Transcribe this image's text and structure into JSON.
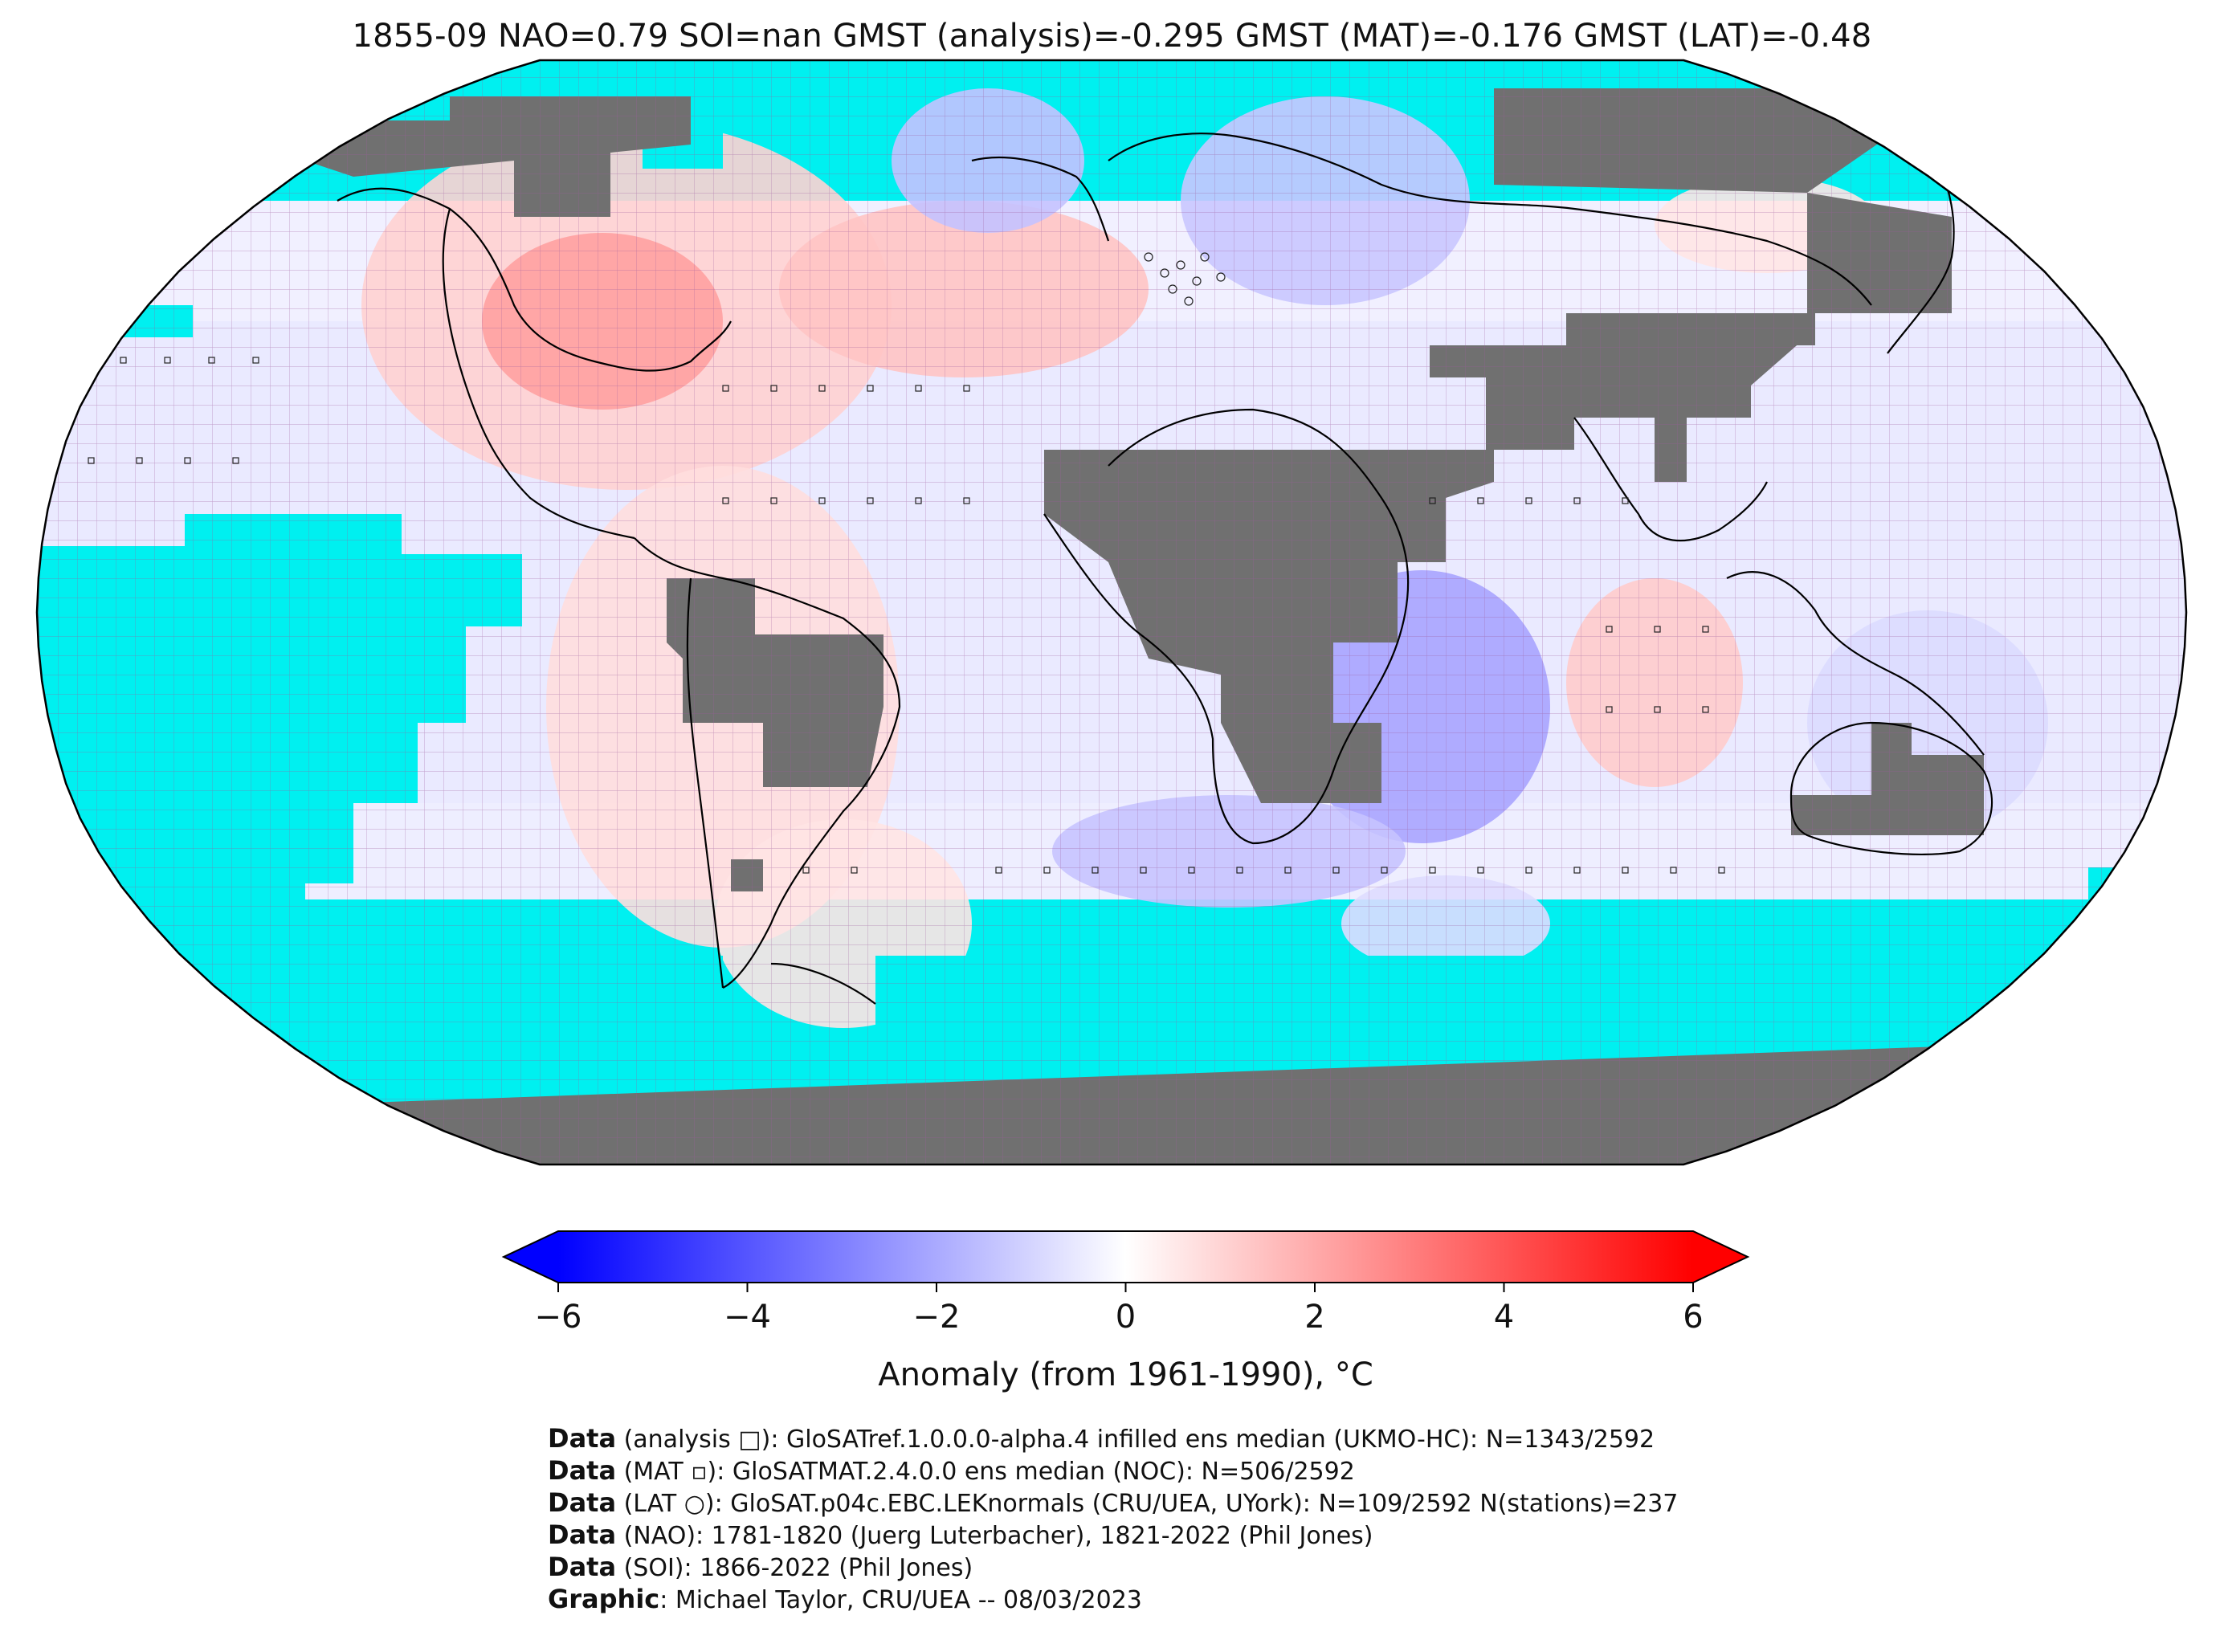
{
  "title": "1855-09 NAO=0.79 SOI=nan GMST (analysis)=-0.295 GMST (MAT)=-0.176 GMST (LAT)=-0.48",
  "map": {
    "projection": "Robinson",
    "graticule_step_deg": 5,
    "colors": {
      "ocean_no_data": "#00f0f0",
      "land_no_data": "#707070",
      "grid": "#9c5a9c",
      "coast": "#000000"
    }
  },
  "colorbar": {
    "label": "Anomaly (from 1961-1990), °C",
    "min": -6,
    "max": 6,
    "extend": "both",
    "ticks": [
      {
        "value": -6,
        "label": "−6"
      },
      {
        "value": -4,
        "label": "−4"
      },
      {
        "value": -2,
        "label": "−2"
      },
      {
        "value": 0,
        "label": "0"
      },
      {
        "value": 2,
        "label": "2"
      },
      {
        "value": 4,
        "label": "4"
      },
      {
        "value": 6,
        "label": "6"
      }
    ],
    "colormap": [
      "#0000ff",
      "#ffffff",
      "#ff0000"
    ]
  },
  "credits": [
    {
      "bold": "Data",
      "text": " (analysis □): GloSATref.1.0.0.0-alpha.4 infilled ens median (UKMO-HC): N=1343/2592"
    },
    {
      "bold": "Data",
      "text": " (MAT ▫): GloSATMAT.2.4.0.0 ens median (NOC): N=506/2592"
    },
    {
      "bold": "Data",
      "text": " (LAT ○): GloSAT.p04c.EBC.LEKnormals (CRU/UEA, UYork): N=109/2592 N(stations)=237"
    },
    {
      "bold": "Data",
      "text": " (NAO): 1781-1820 (Juerg Luterbacher), 1821-2022 (Phil Jones)"
    },
    {
      "bold": "Data",
      "text": " (SOI): 1866-2022 (Phil Jones)"
    },
    {
      "bold": "Graphic",
      "text": ": Michael Taylor, CRU/UEA -- 08/03/2023"
    }
  ]
}
